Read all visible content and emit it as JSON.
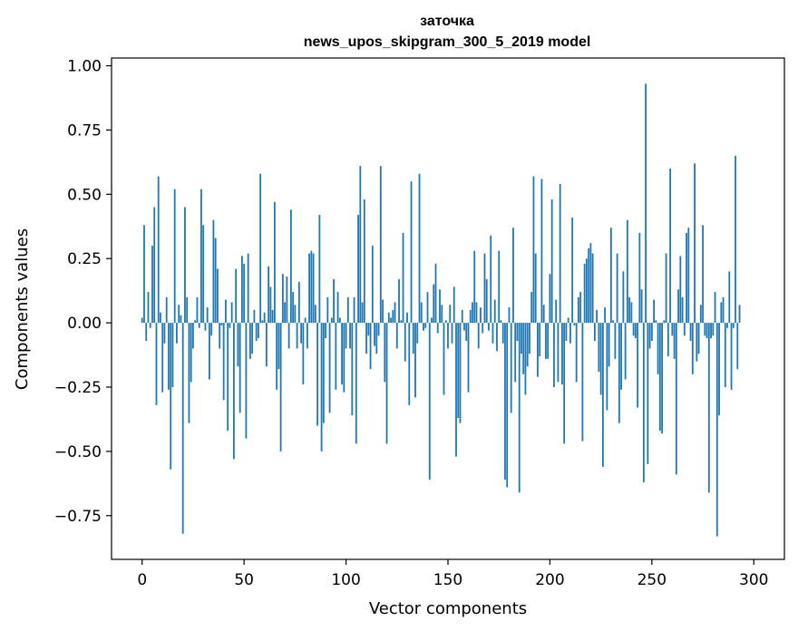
{
  "chart_data": {
    "type": "bar",
    "title": [
      "заточка",
      "news_upos_skipgram_300_5_2019 model"
    ],
    "xlabel": "Vector components",
    "ylabel": "Components values",
    "xlim": [
      -15,
      315
    ],
    "ylim": [
      -0.92,
      1.03
    ],
    "xticks": [
      0,
      50,
      100,
      150,
      200,
      250,
      300
    ],
    "xtick_labels": [
      "0",
      "50",
      "100",
      "150",
      "200",
      "250",
      "300"
    ],
    "yticks": [
      1.0,
      0.75,
      0.5,
      0.25,
      0.0,
      -0.25,
      -0.5,
      -0.75
    ],
    "ytick_labels": [
      "1.00",
      "0.75",
      "0.50",
      "0.25",
      "0.00",
      "−0.25",
      "−0.50",
      "−0.75"
    ],
    "grid": false,
    "color": "#1f77b4",
    "x_start": 0,
    "values": [
      0.02,
      0.38,
      -0.07,
      0.12,
      -0.02,
      0.3,
      0.45,
      -0.32,
      0.57,
      0.04,
      -0.27,
      -0.08,
      0.1,
      -0.26,
      -0.57,
      -0.25,
      0.52,
      -0.08,
      0.07,
      0.03,
      -0.82,
      0.45,
      0.1,
      -0.39,
      -0.23,
      -0.1,
      0.01,
      0.1,
      -0.02,
      0.52,
      0.38,
      -0.03,
      0.06,
      -0.22,
      -0.05,
      0.4,
      0.33,
      0.21,
      -0.1,
      -0.01,
      -0.3,
      0.09,
      -0.42,
      -0.02,
      0.08,
      -0.53,
      0.21,
      -0.17,
      -0.35,
      0.26,
      0.23,
      -0.45,
      0.27,
      -0.14,
      -0.12,
      0.05,
      -0.07,
      -0.06,
      0.58,
      0.01,
      0.04,
      -0.17,
      0.22,
      0.14,
      0.05,
      0.47,
      -0.26,
      -0.18,
      -0.5,
      0.19,
      0.08,
      0.18,
      -0.1,
      0.44,
      0.12,
      0.07,
      -0.1,
      0.16,
      -0.08,
      -0.24,
      0.02,
      -0.1,
      0.27,
      0.28,
      0.27,
      0.07,
      -0.4,
      0.42,
      -0.5,
      -0.39,
      -0.06,
      0.1,
      -0.35,
      0.02,
      0.17,
      -0.26,
      0.12,
      0.02,
      -0.24,
      -0.27,
      -0.1,
      0.1,
      -0.1,
      -0.36,
      0.1,
      -0.47,
      0.42,
      0.61,
      0.08,
      0.48,
      -0.12,
      -0.05,
      -0.18,
      0.3,
      -0.09,
      -0.12,
      -0.05,
      0.61,
      0.09,
      -0.23,
      -0.47,
      0.04,
      0.02,
      0.05,
      0.08,
      -0.1,
      0.17,
      0.01,
      0.35,
      -0.15,
      0.04,
      -0.32,
      0.55,
      -0.12,
      -0.29,
      -0.08,
      0.58,
      0.08,
      -0.03,
      -0.02,
      0.12,
      -0.61,
      0.02,
      0.15,
      0.23,
      -0.04,
      0.13,
      0.07,
      -0.28,
      0.01,
      -0.1,
      0.07,
      -0.08,
      0.14,
      -0.52,
      -0.37,
      -0.39,
      0.05,
      -0.03,
      -0.07,
      -0.27,
      0.05,
      0.08,
      0.28,
      0.08,
      -0.1,
      0.06,
      -0.04,
      0.27,
      0.17,
      -0.03,
      0.34,
      -0.08,
      0.09,
      -0.11,
      0.28,
      0.01,
      -0.08,
      -0.61,
      -0.64,
      0.06,
      -0.35,
      0.37,
      -0.23,
      -0.07,
      -0.66,
      -0.12,
      -0.2,
      -0.28,
      -0.17,
      -0.12,
      0.12,
      0.57,
      0.27,
      -0.21,
      -0.13,
      0.56,
      0.07,
      -0.14,
      -0.14,
      0.19,
      0.48,
      -0.25,
      0.09,
      -0.23,
      0.54,
      -0.24,
      -0.47,
      -0.07,
      0.02,
      -0.08,
      0.41,
      -0.01,
      -0.23,
      0.1,
      0.12,
      -0.46,
      0.23,
      0.25,
      0.29,
      0.31,
      0.27,
      -0.07,
      0.05,
      -0.19,
      -0.28,
      -0.56,
      0.06,
      -0.34,
      -0.17,
      0.37,
      0.01,
      -0.14,
      0.27,
      -0.39,
      -0.26,
      0.2,
      -0.22,
      0.4,
      0.1,
      0.08,
      -0.05,
      -0.06,
      -0.33,
      0.35,
      0.13,
      -0.62,
      0.93,
      -0.55,
      -0.1,
      -0.07,
      0.09,
      0.01,
      -0.2,
      -0.42,
      -0.43,
      0.01,
      0.27,
      -0.13,
      0.6,
      -0.05,
      -0.14,
      -0.59,
      0.13,
      0.26,
      0.1,
      -0.05,
      0.35,
      0.37,
      -0.07,
      -0.2,
      0.62,
      -0.15,
      -0.12,
      0.07,
      0.38,
      -0.05,
      -0.06,
      -0.66,
      -0.06,
      -0.05,
      0.12,
      -0.83,
      -0.36,
      0.08,
      0.1,
      -0.25,
      -0.02,
      0.2,
      -0.26,
      -0.02,
      0.65,
      -0.18,
      0.07
    ]
  }
}
